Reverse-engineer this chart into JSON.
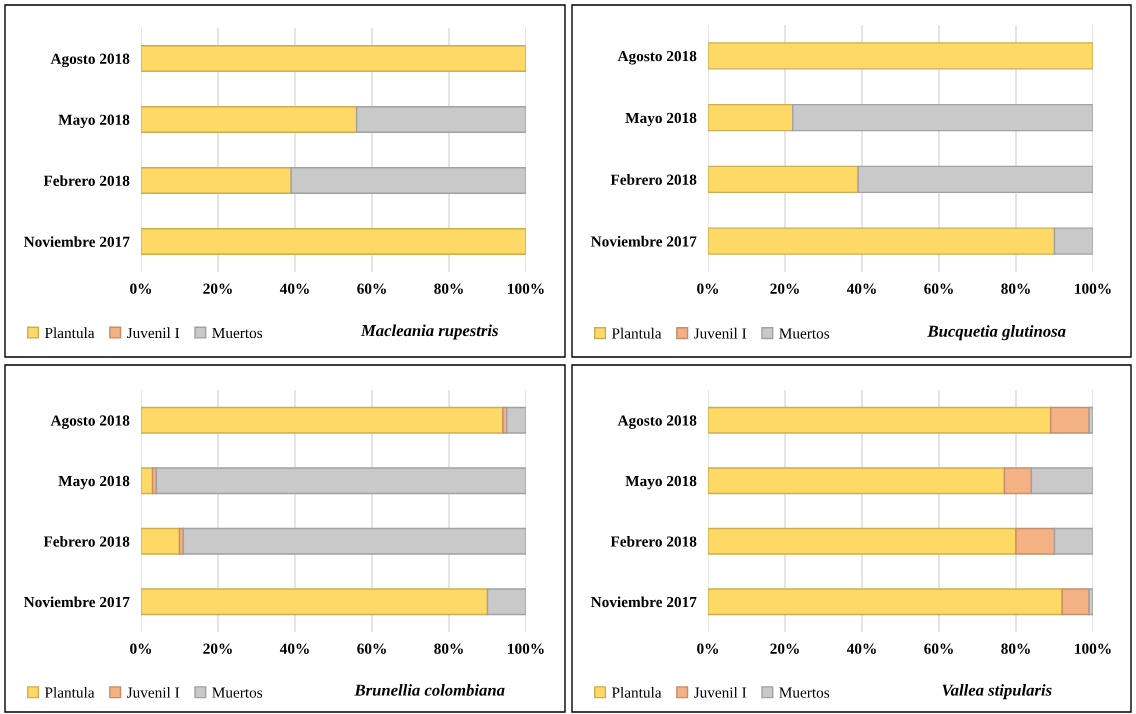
{
  "chart_data": [
    {
      "type": "bar",
      "orientation": "horizontal",
      "stacked": true,
      "title": "Macleania rupestris",
      "categories": [
        "Agosto 2018",
        "Mayo 2018",
        "Febrero 2018",
        "Noviembre 2017"
      ],
      "series": [
        {
          "name": "Plantula",
          "color": "#ffd966",
          "values": [
            100,
            56,
            39,
            100
          ]
        },
        {
          "name": "Juvenil I",
          "color": "#f4b183",
          "values": [
            0,
            0,
            0,
            0
          ]
        },
        {
          "name": "Muertos",
          "color": "#c9c9c9",
          "values": [
            0,
            44,
            61,
            0
          ]
        }
      ],
      "xlim": [
        0,
        100
      ],
      "xticks": [
        {
          "value": 0,
          "label": "0%"
        },
        {
          "value": 20,
          "label": "20%"
        },
        {
          "value": 40,
          "label": "40%"
        },
        {
          "value": 60,
          "label": "60%"
        },
        {
          "value": 80,
          "label": "80%"
        },
        {
          "value": 100,
          "label": "100%"
        }
      ],
      "grid": "x",
      "legend": "bottom left"
    },
    {
      "type": "bar",
      "orientation": "horizontal",
      "stacked": true,
      "title": "Bucquetia glutinosa",
      "categories": [
        "Agosto 2018",
        "Mayo 2018",
        "Febrero 2018",
        "Noviembre 2017"
      ],
      "series": [
        {
          "name": "Plantula",
          "color": "#ffd966",
          "values": [
            100,
            22,
            39,
            90
          ]
        },
        {
          "name": "Juvenil I",
          "color": "#f4b183",
          "values": [
            0,
            0,
            0,
            0
          ]
        },
        {
          "name": "Muertos",
          "color": "#c9c9c9",
          "values": [
            0,
            78,
            61,
            10
          ]
        }
      ],
      "xlim": [
        0,
        100
      ],
      "xticks": [
        {
          "value": 0,
          "label": "0%"
        },
        {
          "value": 20,
          "label": "20%"
        },
        {
          "value": 40,
          "label": "40%"
        },
        {
          "value": 60,
          "label": "60%"
        },
        {
          "value": 80,
          "label": "80%"
        },
        {
          "value": 100,
          "label": "100%"
        }
      ],
      "grid": "x",
      "legend": "bottom left"
    },
    {
      "type": "bar",
      "orientation": "horizontal",
      "stacked": true,
      "title": "Brunellia colombiana",
      "categories": [
        "Agosto 2018",
        "Mayo 2018",
        "Febrero 2018",
        "Noviembre 2017"
      ],
      "series": [
        {
          "name": "Plantula",
          "color": "#ffd966",
          "values": [
            94,
            3,
            10,
            90
          ]
        },
        {
          "name": "Juvenil I",
          "color": "#f4b183",
          "values": [
            1,
            1,
            1,
            0
          ]
        },
        {
          "name": "Muertos",
          "color": "#c9c9c9",
          "values": [
            5,
            96,
            89,
            10
          ]
        }
      ],
      "xlim": [
        0,
        100
      ],
      "xticks": [
        {
          "value": 0,
          "label": "0%"
        },
        {
          "value": 20,
          "label": "20%"
        },
        {
          "value": 40,
          "label": "40%"
        },
        {
          "value": 60,
          "label": "60%"
        },
        {
          "value": 80,
          "label": "80%"
        },
        {
          "value": 100,
          "label": "100%"
        }
      ],
      "grid": "x",
      "legend": "bottom left"
    },
    {
      "type": "bar",
      "orientation": "horizontal",
      "stacked": true,
      "title": "Vallea stipularis",
      "categories": [
        "Agosto 2018",
        "Mayo 2018",
        "Febrero 2018",
        "Noviembre 2017"
      ],
      "series": [
        {
          "name": "Plantula",
          "color": "#ffd966",
          "values": [
            89,
            77,
            80,
            92
          ]
        },
        {
          "name": "Juvenil I",
          "color": "#f4b183",
          "values": [
            10,
            7,
            10,
            7
          ]
        },
        {
          "name": "Muertos",
          "color": "#c9c9c9",
          "values": [
            1,
            16,
            10,
            1
          ]
        }
      ],
      "xlim": [
        0,
        100
      ],
      "xticks": [
        {
          "value": 0,
          "label": "0%"
        },
        {
          "value": 20,
          "label": "20%"
        },
        {
          "value": 40,
          "label": "40%"
        },
        {
          "value": 60,
          "label": "60%"
        },
        {
          "value": 80,
          "label": "80%"
        },
        {
          "value": 100,
          "label": "100%"
        }
      ],
      "grid": "x",
      "legend": "bottom left"
    }
  ]
}
